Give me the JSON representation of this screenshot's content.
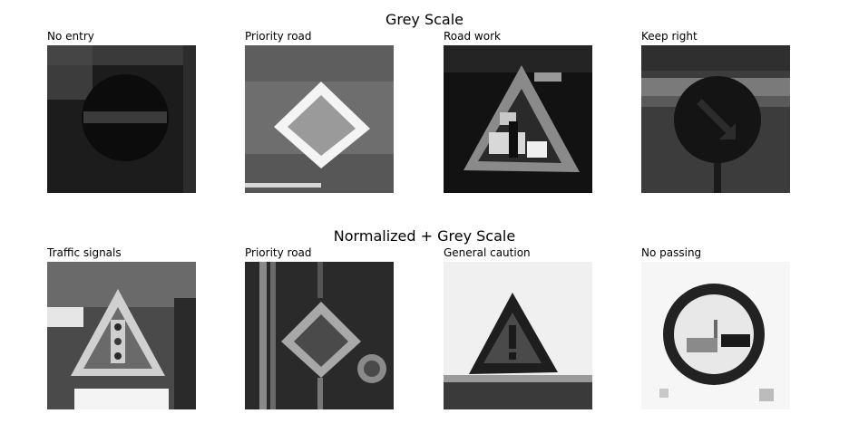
{
  "rows": [
    {
      "title": "Grey Scale",
      "images": [
        {
          "label": "No entry",
          "icon": "no-entry-sign"
        },
        {
          "label": "Priority road",
          "icon": "priority-road-sign"
        },
        {
          "label": "Road work",
          "icon": "road-work-sign"
        },
        {
          "label": "Keep right",
          "icon": "keep-right-sign"
        }
      ]
    },
    {
      "title": "Normalized + Grey Scale",
      "images": [
        {
          "label": "Traffic signals",
          "icon": "traffic-signals-sign"
        },
        {
          "label": "Priority road",
          "icon": "priority-road-sign"
        },
        {
          "label": "General caution",
          "icon": "general-caution-sign"
        },
        {
          "label": "No passing",
          "icon": "no-passing-sign"
        }
      ]
    }
  ]
}
